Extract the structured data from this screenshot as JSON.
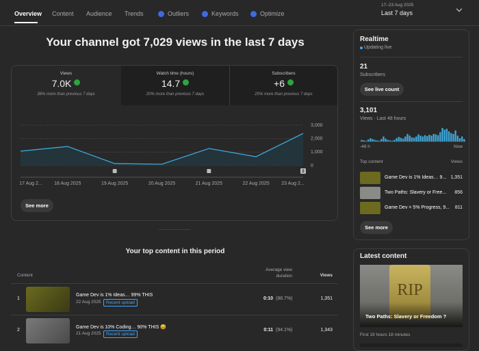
{
  "tabs": [
    "Overview",
    "Content",
    "Audience",
    "Trends",
    "Outliers",
    "Keywords",
    "Optimize"
  ],
  "date_range": {
    "dates": "17–23 Aug 2025",
    "label": "Last 7 days"
  },
  "headline": "Your channel got 7,029 views in the last 7 days",
  "metrics": [
    {
      "label": "Views",
      "value": "7.0K",
      "note": "38% more than previous 7 days"
    },
    {
      "label": "Watch time (hours)",
      "value": "14.7",
      "note": "20% more than previous 7 days"
    },
    {
      "label": "Subscribers",
      "value": "+6",
      "note": "20% more than previous 7 days"
    }
  ],
  "chart_data": {
    "type": "line",
    "categories": [
      "17 Aug 2...",
      "18 Aug 2025",
      "19 Aug 2025",
      "20 Aug 2025",
      "21 Aug 2025",
      "22 Aug 2025",
      "23 Aug 2..."
    ],
    "values": [
      1070,
      1420,
      150,
      100,
      1270,
      660,
      2390
    ],
    "color": "#3ea6d8",
    "ylim": [
      0,
      3000
    ],
    "yticks": [
      0,
      {
        "value": 1000,
        "label": "1,000"
      },
      {
        "value": 2000,
        "label": "2,000"
      },
      {
        "value": 3000,
        "label": "3,000"
      }
    ],
    "grid": true,
    "annotations": [
      "2"
    ]
  },
  "see_more": "See more",
  "top_content": {
    "title": "Your top content in this period",
    "columns": [
      "Content",
      "Average view duration",
      "Views"
    ],
    "rows": [
      {
        "rank": "1",
        "title": "Game Dev is 1% Ideas… 99% THIS",
        "date": "22 Aug 2025",
        "badge": "Recent upload",
        "avd": "0:10",
        "avd_pct": "(88.7%)",
        "views": "1,351"
      },
      {
        "rank": "2",
        "title": "Game Dev is 10% Coding… 90% THIS 😅",
        "date": "21 Aug 2025",
        "badge": "Recent upload",
        "avd": "0:11",
        "avd_pct": "(94.1%)",
        "views": "1,343"
      }
    ]
  },
  "realtime": {
    "title": "Realtime",
    "status": "Updating live",
    "subscribers": {
      "value": "21",
      "label": "Subscribers",
      "button": "See live count"
    },
    "views": {
      "value": "3,101",
      "label": "Views · Last 48 hours",
      "axis_start": "-48 h",
      "axis_end": "Now",
      "hourly": [
        20,
        15,
        10,
        25,
        40,
        30,
        20,
        15,
        10,
        30,
        60,
        35,
        20,
        15,
        10,
        20,
        40,
        55,
        45,
        35,
        60,
        90,
        70,
        50,
        45,
        60,
        85,
        70,
        60,
        75,
        65,
        80,
        70,
        90,
        85,
        75,
        110,
        160,
        140,
        150,
        120,
        100,
        90,
        130,
        70,
        40,
        60,
        30
      ]
    },
    "top_content": {
      "title": "Top content",
      "column": "Views",
      "items": [
        {
          "title": "Game Dev is 1% Ideas… 9...",
          "views": "1,351"
        },
        {
          "title": "Two Paths: Slavery or Free...",
          "views": "856"
        },
        {
          "title": "Game Dev = 5% Progress, 9...",
          "views": "811"
        }
      ]
    },
    "button": "See more"
  },
  "latest": {
    "title": "Latest content",
    "thumbnail_text": "RIP",
    "video_title": "Two Paths: Slavery or Freedom ?",
    "stat": "First 19 hours 18 minutes"
  }
}
